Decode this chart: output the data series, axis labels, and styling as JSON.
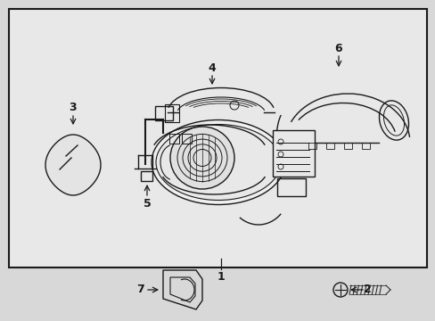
{
  "bg_color": "#d8d8d8",
  "box_bg": "#e8e8e8",
  "line_color": "#1a1a1a",
  "lw": 1.0,
  "fig_w": 4.89,
  "fig_h": 3.6,
  "dpi": 100
}
